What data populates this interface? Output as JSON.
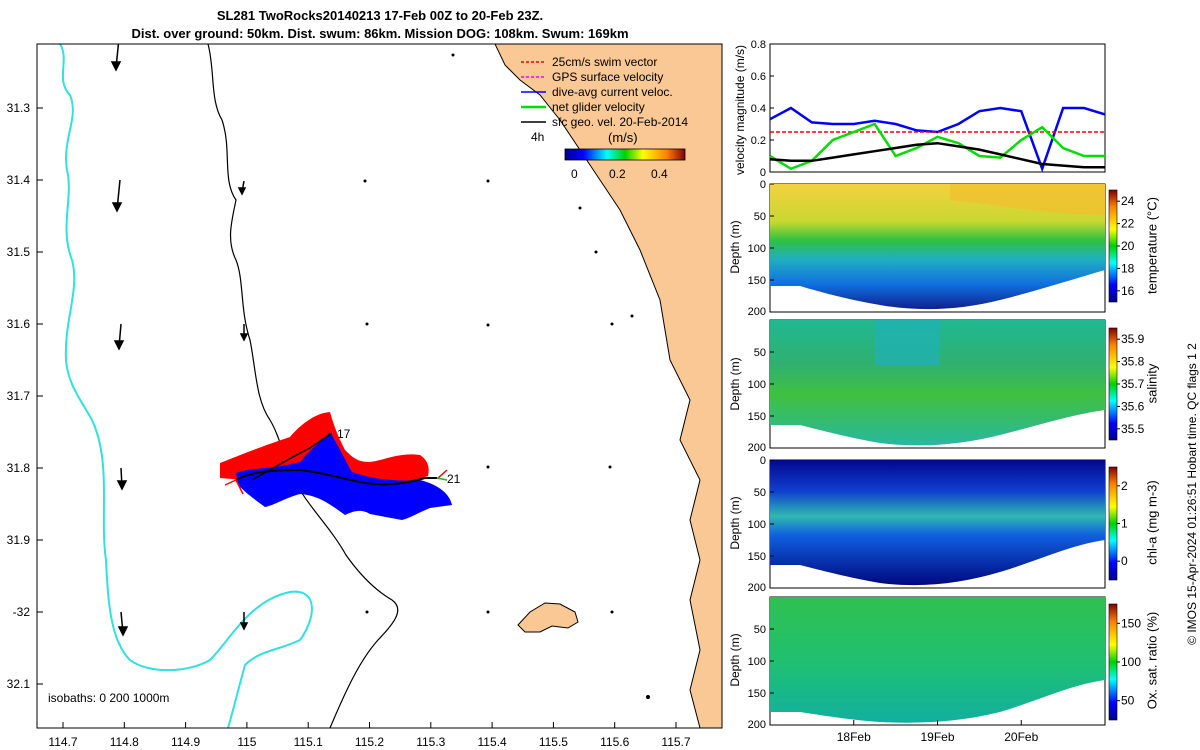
{
  "title_line1": "SL281 TwoRocks20140213 17-Feb 00Z to 20-Feb 23Z.",
  "title_line2": "Dist. over ground: 50km. Dist. swum: 86km. Mission DOG: 108km. Swum: 169km",
  "map": {
    "lon_ticks": [
      "114.7",
      "114.8",
      "114.9",
      "115",
      "115.1",
      "115.2",
      "115.3",
      "115.4",
      "115.5",
      "115.6",
      "115.7"
    ],
    "lat_ticks": [
      "31.3",
      "31.4",
      "31.5",
      "31.6",
      "31.7",
      "31.8",
      "31.9",
      "-32",
      "32.1"
    ],
    "legend": [
      {
        "label": "25cm/s swim vector",
        "color": "#ff0000"
      },
      {
        "label": "GPS surface velocity",
        "color": "#ff00ff"
      },
      {
        "label": "dive-avg current veloc.",
        "color": "#0000ff"
      },
      {
        "label": "net glider velocity",
        "color": "#00dd00"
      },
      {
        "label": "sfc geo. vel. 20-Feb-2014",
        "color": "#000000"
      }
    ],
    "colorbar_title": "(m/s)",
    "colorbar_ticks": [
      "0",
      "0.2",
      "0.4"
    ],
    "label_4h": "4h",
    "label_start": "17",
    "label_end": "21",
    "isobaths": "isobaths: 0   200  1000m",
    "colors": {
      "land": "#fac894",
      "isobath": "#33e0e0",
      "track": "#000000"
    }
  },
  "velocity_panel": {
    "ylabel": "velocity magnitude (m/s)",
    "yticks": [
      "0",
      "0.2",
      "0.4",
      "0.6",
      "0.8"
    ]
  },
  "sections": [
    {
      "id": "temperature",
      "ylabel": "Depth (m)",
      "cbar_label": "temperature (°C)",
      "cbar_ticks": [
        "16",
        "18",
        "20",
        "22",
        "24"
      ],
      "depth_ticks": [
        "0",
        "50",
        "100",
        "150",
        "200"
      ]
    },
    {
      "id": "salinity",
      "ylabel": "Depth (m)",
      "cbar_label": "salinity",
      "cbar_ticks": [
        "35.5",
        "35.6",
        "35.7",
        "35.8",
        "35.9"
      ],
      "depth_ticks": [
        "50",
        "100",
        "150",
        "200"
      ]
    },
    {
      "id": "chla",
      "ylabel": "Depth (m)",
      "cbar_label": "chl-a (mg m-3)",
      "cbar_ticks": [
        "0",
        "1",
        "2"
      ],
      "depth_ticks": [
        "0",
        "50",
        "100",
        "150",
        "200"
      ]
    },
    {
      "id": "oxygen",
      "ylabel": "Depth (m)",
      "cbar_label": "Ox. sat. ratio (%)",
      "cbar_ticks": [
        "50",
        "100",
        "150"
      ],
      "depth_ticks": [
        "50",
        "100",
        "150",
        "200"
      ]
    }
  ],
  "time_ticks": [
    "18Feb",
    "19Feb",
    "20Feb"
  ],
  "side_note": "© IMOS 15-Apr-2024 01:26:51 Hobart time. QC flags 1  2",
  "chart_data": {
    "type": "line",
    "title": "velocity magnitude (m/s)",
    "ylabel": "velocity magnitude (m/s)",
    "ylim": [
      0,
      0.8
    ],
    "x": [
      17.0,
      17.25,
      17.5,
      17.75,
      18.0,
      18.25,
      18.5,
      18.75,
      19.0,
      19.25,
      19.5,
      19.75,
      20.0,
      20.25,
      20.5,
      20.75,
      21.0
    ],
    "series": [
      {
        "name": "dive-avg current veloc.",
        "color": "#0000ff",
        "values": [
          0.33,
          0.4,
          0.31,
          0.3,
          0.3,
          0.32,
          0.3,
          0.26,
          0.25,
          0.3,
          0.38,
          0.4,
          0.38,
          0.02,
          0.4,
          0.4,
          0.36
        ]
      },
      {
        "name": "25cm/s swim vector",
        "color": "#ff0000",
        "values": [
          0.25,
          0.25,
          0.25,
          0.25,
          0.25,
          0.25,
          0.25,
          0.25,
          0.25,
          0.25,
          0.25,
          0.25,
          0.25,
          0.25,
          0.25,
          0.25,
          0.25
        ]
      },
      {
        "name": "net glider velocity",
        "color": "#00dd00",
        "values": [
          0.1,
          0.02,
          0.07,
          0.2,
          0.25,
          0.3,
          0.1,
          0.15,
          0.22,
          0.18,
          0.1,
          0.09,
          0.2,
          0.28,
          0.15,
          0.1,
          0.1
        ]
      },
      {
        "name": "sfc geo. vel.",
        "color": "#000000",
        "values": [
          0.08,
          0.07,
          0.07,
          0.09,
          0.11,
          0.13,
          0.15,
          0.17,
          0.18,
          0.16,
          0.14,
          0.11,
          0.08,
          0.05,
          0.04,
          0.03,
          0.03
        ]
      }
    ]
  }
}
